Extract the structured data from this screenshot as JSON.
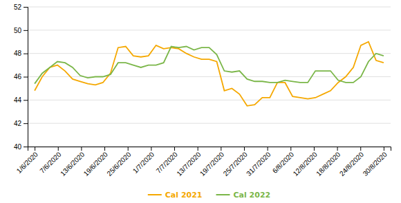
{
  "chart_data": {
    "type": "line",
    "x": [
      0,
      0.326087,
      0.652174,
      0.978261,
      1.304348,
      1.630435,
      1.956522,
      2.282609,
      2.608696,
      2.934783,
      3.26087,
      3.586957,
      3.913043,
      4.23913,
      4.565217,
      4.891304,
      5.217391,
      5.543478,
      5.869565,
      6.195652,
      6.521739,
      6.847826,
      7.173913,
      7.5,
      7.826087,
      8.152174,
      8.478261,
      8.804348,
      9.130435,
      9.456522,
      9.782609,
      10.108696,
      10.434783,
      10.76087,
      11.086957,
      11.413043,
      11.73913,
      12.065217,
      12.391304,
      12.717391,
      13.043478,
      13.369565,
      13.695652,
      14.021739,
      14.347826,
      14.673913,
      15
    ],
    "series": [
      {
        "name": "Cal 2021",
        "color": "#F5A800",
        "values": [
          44.8,
          46.0,
          46.8,
          47.0,
          46.5,
          45.8,
          45.6,
          45.4,
          45.3,
          45.5,
          46.3,
          48.5,
          48.6,
          47.8,
          47.7,
          47.8,
          48.7,
          48.4,
          48.5,
          48.4,
          48.0,
          47.7,
          47.5,
          47.5,
          47.3,
          44.8,
          45.0,
          44.5,
          43.5,
          43.6,
          44.2,
          44.2,
          45.5,
          45.5,
          44.3,
          44.2,
          44.1,
          44.2,
          44.5,
          44.8,
          45.5,
          46.0,
          46.8,
          48.7,
          49.0,
          47.4,
          47.2
        ]
      },
      {
        "name": "Cal 2022",
        "color": "#7AB648",
        "values": [
          45.4,
          46.3,
          46.8,
          47.3,
          47.2,
          46.8,
          46.1,
          45.9,
          46.0,
          46.0,
          46.2,
          47.2,
          47.2,
          47.0,
          46.8,
          47.0,
          47.0,
          47.2,
          48.6,
          48.5,
          48.6,
          48.3,
          48.5,
          48.5,
          47.9,
          46.5,
          46.4,
          46.5,
          45.8,
          45.6,
          45.6,
          45.5,
          45.5,
          45.7,
          45.6,
          45.5,
          45.5,
          46.5,
          46.5,
          46.5,
          45.7,
          45.5,
          45.5,
          46.0,
          47.3,
          48.0,
          47.8
        ]
      }
    ],
    "xlim": [
      -0.3,
      15.3
    ],
    "xticks": [
      {
        "value": 0,
        "label": "1/6/2020"
      },
      {
        "value": 1,
        "label": "7/6/2020"
      },
      {
        "value": 2,
        "label": "13/6/2020"
      },
      {
        "value": 3,
        "label": "19/6/2020"
      },
      {
        "value": 4,
        "label": "25/6/2020"
      },
      {
        "value": 5,
        "label": "1/7/2020"
      },
      {
        "value": 6,
        "label": "7/7/2020"
      },
      {
        "value": 7,
        "label": "13/7/2020"
      },
      {
        "value": 8,
        "label": "19/7/2020"
      },
      {
        "value": 9,
        "label": "25/7/2020"
      },
      {
        "value": 10,
        "label": "31/7/2020"
      },
      {
        "value": 11,
        "label": "6/8/2020"
      },
      {
        "value": 12,
        "label": "12/8/2020"
      },
      {
        "value": 13,
        "label": "18/8/2020"
      },
      {
        "value": 14,
        "label": "24/8/2020"
      },
      {
        "value": 15,
        "label": "30/8/2020"
      }
    ],
    "ylim": [
      40,
      52
    ],
    "yticks": [
      40,
      42,
      44,
      46,
      48,
      50,
      52
    ],
    "grid": true,
    "legend": "bottom"
  }
}
